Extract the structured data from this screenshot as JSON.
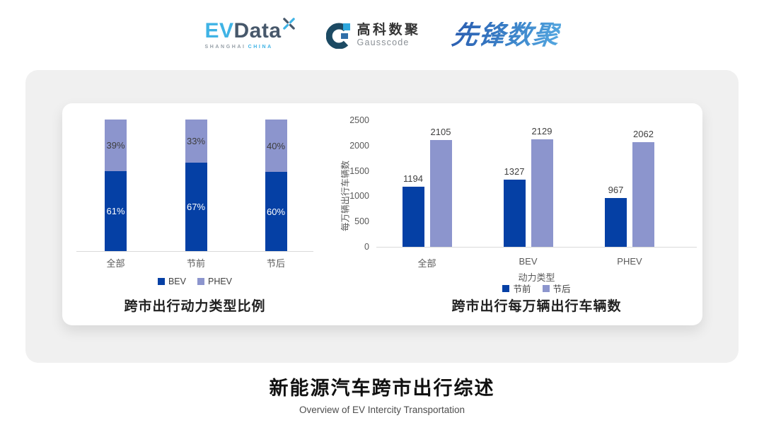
{
  "header": {
    "evdata_logo": {
      "ev": "EV",
      "data": "Data",
      "tagline_shanghai": "SHANGHAI",
      "tagline_china": "CHINA"
    },
    "gausscode_logo": {
      "name_cn": "高科数聚",
      "name_en": "Gausscode"
    },
    "pioneer_logo": {
      "text": "先锋数聚"
    }
  },
  "colors": {
    "bar_dark_blue": "#0540a5",
    "bar_light_blue": "#8c95cd",
    "card_gray": "#f0f0f0",
    "axis_gray": "#595959",
    "label_gray": "#3d3d3d",
    "evdata_teal": "#3fb3e5",
    "evdata_slate": "#47586b"
  },
  "chart_data": [
    {
      "type": "bar",
      "variant": "stacked-percentage",
      "title": "跨市出行动力类型比例",
      "categories": [
        "全部",
        "节前",
        "节后"
      ],
      "series": [
        {
          "name": "BEV",
          "values": [
            61,
            67,
            60
          ],
          "labels": [
            "61%",
            "67%",
            "60%"
          ],
          "color": "#0540a5"
        },
        {
          "name": "PHEV",
          "values": [
            39,
            33,
            40
          ],
          "labels": [
            "39%",
            "33%",
            "40%"
          ],
          "color": "#8c95cd"
        }
      ],
      "ylim": [
        0,
        100
      ],
      "grid": false,
      "legend_position": "bottom"
    },
    {
      "type": "bar",
      "variant": "grouped",
      "title": "跨市出行每万辆出行车辆数",
      "categories": [
        "全部",
        "BEV",
        "PHEV"
      ],
      "xlabel": "动力类型",
      "ylabel": "每万辆出行车辆数",
      "ylim": [
        0,
        2500
      ],
      "yticks": [
        0,
        500,
        1000,
        1500,
        2000,
        2500
      ],
      "series": [
        {
          "name": "节前",
          "values": [
            1194,
            1327,
            967
          ],
          "color": "#0540a5"
        },
        {
          "name": "节后",
          "values": [
            2105,
            2129,
            2062
          ],
          "color": "#8c95cd"
        }
      ],
      "grid": false,
      "legend_position": "bottom"
    }
  ],
  "footer": {
    "title": "新能源汽车跨市出行综述",
    "subtitle": "Overview of EV Intercity Transportation"
  }
}
